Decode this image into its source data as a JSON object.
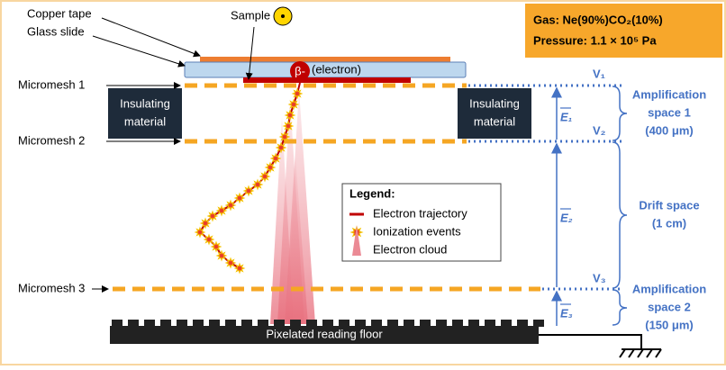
{
  "labels": {
    "copper_tape": "Copper tape",
    "glass_slide": "Glass slide",
    "sample": "Sample",
    "beta": "β-",
    "electron": "(electron)",
    "micromesh_1": "Micromesh 1",
    "micromesh_2": "Micromesh 2",
    "micromesh_3": "Micromesh 3",
    "insulating_left": [
      "Insulating",
      "material"
    ],
    "insulating_right": [
      "Insulating",
      "material"
    ],
    "reading_floor": "Pixelated reading floor"
  },
  "conditions": {
    "gas": "Gas: Ne(90%)CO₂(10%)",
    "pressure": "Pressure: 1.1 × 10⁵ Pa"
  },
  "legend": {
    "title": "Legend:",
    "items": [
      "Electron trajectory",
      "Ionization events",
      "Electron cloud"
    ]
  },
  "potentials": [
    "V₁",
    "V₂",
    "V₃"
  ],
  "fields": [
    "E₁",
    "E₂",
    "E₃"
  ],
  "spaces": [
    [
      "Amplification",
      "space 1",
      "(400 μm)"
    ],
    [
      "Drift space",
      "(1 cm)"
    ],
    [
      "Amplification",
      "space 2",
      "(150 μm)"
    ]
  ]
}
